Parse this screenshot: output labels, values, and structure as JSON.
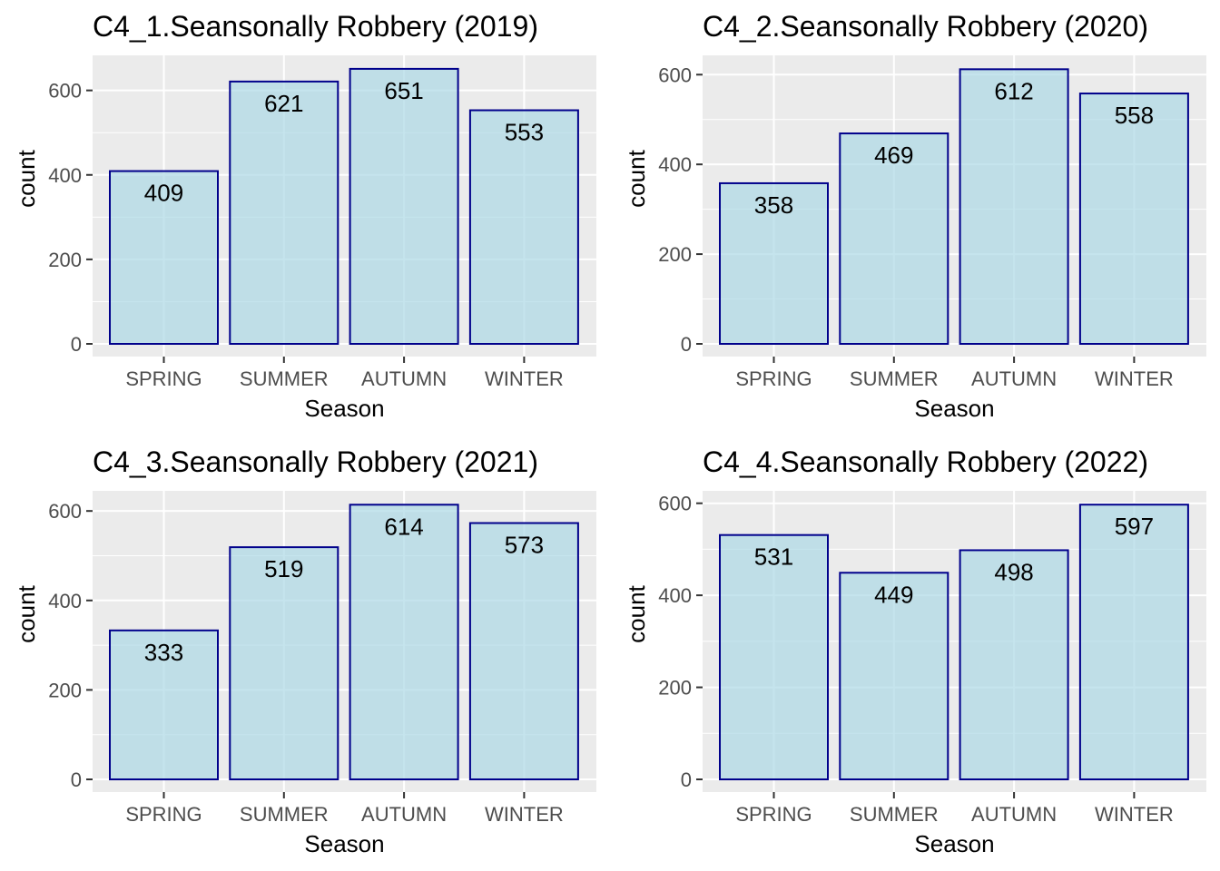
{
  "chart_data": [
    {
      "type": "bar",
      "title": "C4_1.Seansonally Robbery (2019)",
      "xlabel": "Season",
      "ylabel": "count",
      "categories": [
        "SPRING",
        "SUMMER",
        "AUTUMN",
        "WINTER"
      ],
      "values": [
        409,
        621,
        651,
        553
      ],
      "ylim": [
        0,
        683
      ],
      "yticks": [
        0,
        200,
        400,
        600
      ],
      "grid": true,
      "bar_fill": "#add8e6",
      "bar_outline": "#00008b"
    },
    {
      "type": "bar",
      "title": "C4_2.Seansonally Robbery (2020)",
      "xlabel": "Season",
      "ylabel": "count",
      "categories": [
        "SPRING",
        "SUMMER",
        "AUTUMN",
        "WINTER"
      ],
      "values": [
        358,
        469,
        612,
        558
      ],
      "ylim": [
        0,
        643
      ],
      "yticks": [
        0,
        200,
        400,
        600
      ],
      "grid": true,
      "bar_fill": "#add8e6",
      "bar_outline": "#00008b"
    },
    {
      "type": "bar",
      "title": "C4_3.Seansonally Robbery (2021)",
      "xlabel": "Season",
      "ylabel": "count",
      "categories": [
        "SPRING",
        "SUMMER",
        "AUTUMN",
        "WINTER"
      ],
      "values": [
        333,
        519,
        614,
        573
      ],
      "ylim": [
        0,
        645
      ],
      "yticks": [
        0,
        200,
        400,
        600
      ],
      "grid": true,
      "bar_fill": "#add8e6",
      "bar_outline": "#00008b"
    },
    {
      "type": "bar",
      "title": "C4_4.Seansonally Robbery (2022)",
      "xlabel": "Season",
      "ylabel": "count",
      "categories": [
        "SPRING",
        "SUMMER",
        "AUTUMN",
        "WINTER"
      ],
      "values": [
        531,
        449,
        498,
        597
      ],
      "ylim": [
        0,
        627
      ],
      "yticks": [
        0,
        200,
        400,
        600
      ],
      "grid": true,
      "bar_fill": "#add8e6",
      "bar_outline": "#00008b"
    }
  ]
}
